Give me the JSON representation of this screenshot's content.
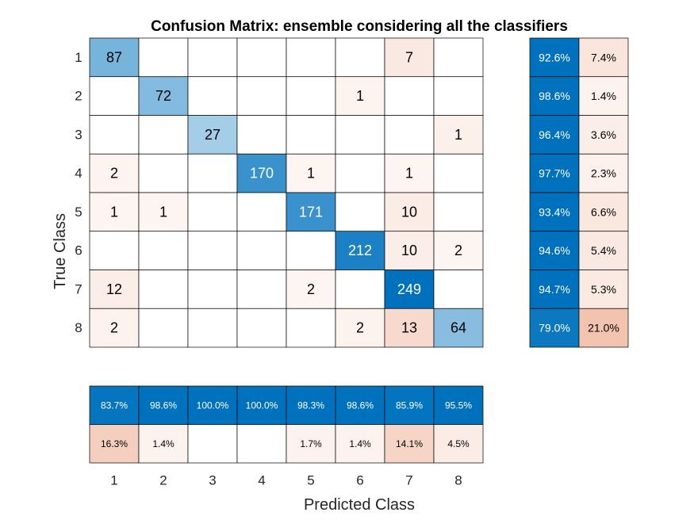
{
  "chart_data": {
    "type": "heatmap",
    "title": "Confusion Matrix: ensemble considering all the classifiers",
    "xlabel": "Predicted Class",
    "ylabel": "True Class",
    "classes": [
      "1",
      "2",
      "3",
      "4",
      "5",
      "6",
      "7",
      "8"
    ],
    "matrix": [
      [
        87,
        0,
        0,
        0,
        0,
        0,
        7,
        0
      ],
      [
        0,
        72,
        0,
        0,
        0,
        1,
        0,
        0
      ],
      [
        0,
        0,
        27,
        0,
        0,
        0,
        0,
        1
      ],
      [
        2,
        0,
        0,
        170,
        1,
        0,
        1,
        0
      ],
      [
        1,
        1,
        0,
        0,
        171,
        0,
        10,
        0
      ],
      [
        0,
        0,
        0,
        0,
        0,
        212,
        10,
        2
      ],
      [
        12,
        0,
        0,
        0,
        2,
        0,
        249,
        0
      ],
      [
        2,
        0,
        0,
        0,
        0,
        2,
        13,
        64
      ]
    ],
    "row_summary": {
      "correct": [
        "92.6%",
        "98.6%",
        "96.4%",
        "97.7%",
        "93.4%",
        "94.6%",
        "94.7%",
        "79.0%"
      ],
      "incorrect": [
        "7.4%",
        "1.4%",
        "3.6%",
        "2.3%",
        "6.6%",
        "5.4%",
        "5.3%",
        "21.0%"
      ]
    },
    "column_summary": {
      "correct": [
        "83.7%",
        "98.6%",
        "100.0%",
        "100.0%",
        "98.3%",
        "98.6%",
        "85.9%",
        "95.5%"
      ],
      "incorrect": [
        "16.3%",
        "1.4%",
        "",
        "",
        "1.7%",
        "1.4%",
        "14.1%",
        "4.5%"
      ]
    },
    "colors": {
      "correct_dark": "#0072BD",
      "incorrect_dark": "#D95319",
      "grid": "#000000",
      "text_dark": "#000000",
      "text_light": "#ffffff"
    }
  }
}
